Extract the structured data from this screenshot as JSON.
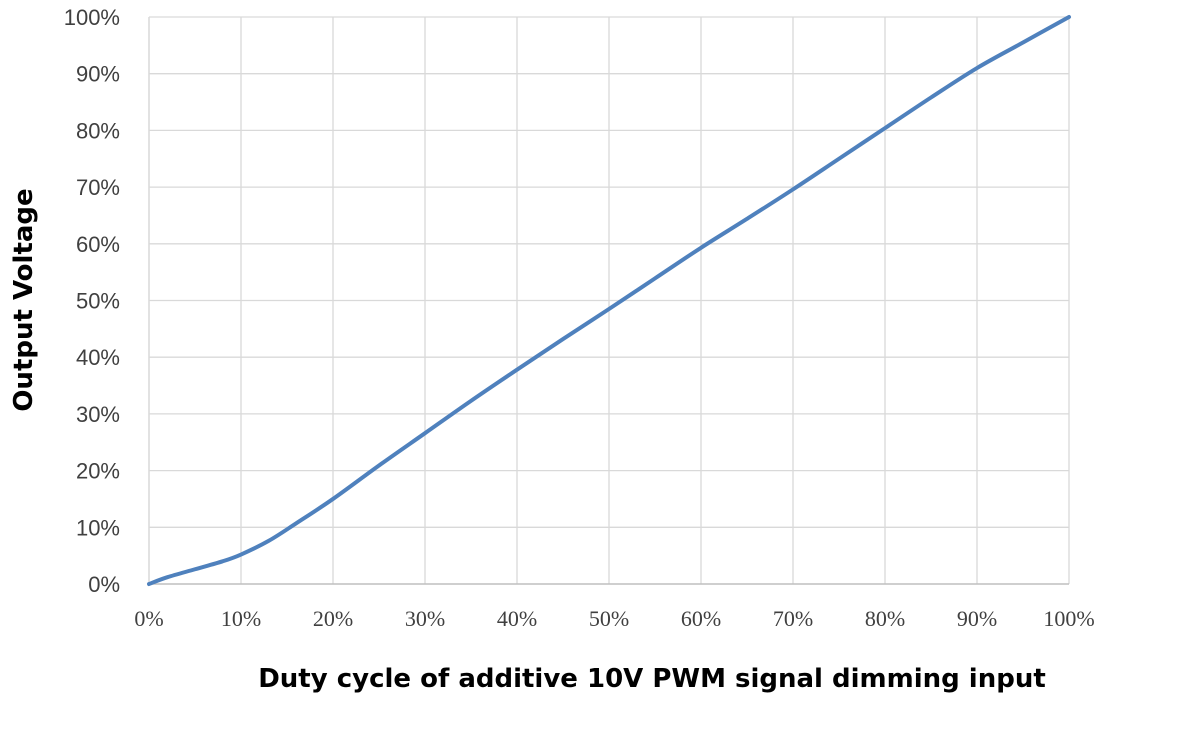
{
  "chart_data": {
    "type": "line",
    "title": "",
    "xlabel": "Duty cycle of additive 10V PWM signal dimming input",
    "ylabel": "Output Voltage",
    "xlim": [
      0,
      100
    ],
    "ylim": [
      0,
      100
    ],
    "x_ticks": [
      0,
      10,
      20,
      30,
      40,
      50,
      60,
      70,
      80,
      90,
      100
    ],
    "y_ticks": [
      0,
      10,
      20,
      30,
      40,
      50,
      60,
      70,
      80,
      90,
      100
    ],
    "x_tick_labels": [
      "0%",
      "10%",
      "20%",
      "30%",
      "40%",
      "50%",
      "60%",
      "70%",
      "80%",
      "90%",
      "100%"
    ],
    "y_tick_labels": [
      "0%",
      "10%",
      "20%",
      "30%",
      "40%",
      "50%",
      "60%",
      "70%",
      "80%",
      "90%",
      "100%"
    ],
    "grid": true,
    "series": [
      {
        "color": "#4f81bd",
        "x": [
          0,
          2,
          5,
          8,
          10,
          13,
          16,
          20,
          25,
          30,
          35,
          40,
          45,
          50,
          55,
          60,
          65,
          70,
          75,
          80,
          85,
          90,
          95,
          100
        ],
        "y": [
          0,
          1.2,
          2.6,
          4,
          5.2,
          7.6,
          10.7,
          15,
          20.9,
          26.6,
          32.3,
          37.8,
          43.2,
          48.5,
          53.9,
          59.3,
          64.4,
          69.6,
          75,
          80.4,
          85.8,
          91.0,
          95.5,
          100
        ]
      }
    ]
  }
}
